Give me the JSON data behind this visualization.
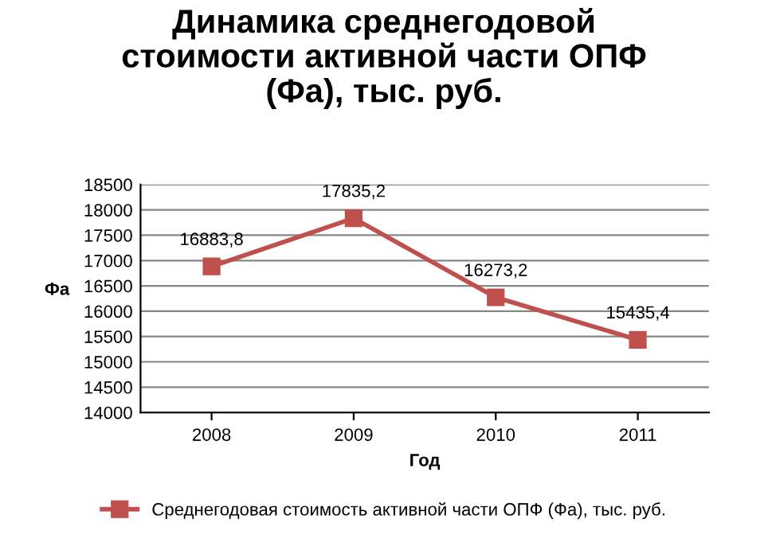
{
  "chart_data": {
    "type": "line",
    "title": "Динамика среднегодовой\nстоимости активной части ОПФ\n(Фа), тыс. руб.",
    "xlabel": "Год",
    "ylabel": "Фа",
    "categories": [
      "2008",
      "2009",
      "2010",
      "2011"
    ],
    "series": [
      {
        "name": "Среднегодовая стоимость активной части ОПФ (Фа), тыс. руб.",
        "color": "#c0504d",
        "values": [
          16883.8,
          17835.2,
          16273.2,
          15435.4
        ],
        "value_labels": [
          "16883,8",
          "17835,2",
          "16273,2",
          "15435,4"
        ]
      }
    ],
    "ylim": [
      14000,
      18500
    ],
    "yticks": [
      14000,
      14500,
      15000,
      15500,
      16000,
      16500,
      17000,
      17500,
      18000,
      18500
    ],
    "grid": "y",
    "legend": "bottom",
    "marker": "square",
    "line_style": "solid"
  }
}
